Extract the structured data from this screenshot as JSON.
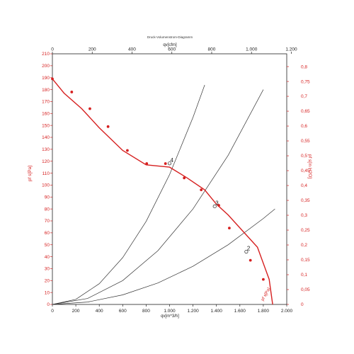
{
  "chart_data": {
    "type": "line",
    "title": "Druck-Volumenstrom-Diagramm",
    "axes": {
      "x_bottom": {
        "label": "qv[m^3/h]",
        "min": 0,
        "max": 2000,
        "ticks": [
          0,
          200,
          400,
          600,
          800,
          1000,
          1200,
          1400,
          1600,
          1800,
          2000
        ],
        "tick_labels": [
          "0",
          "200",
          "400",
          "600",
          "800",
          "1.000",
          "1.200",
          "1.400",
          "1.600",
          "1.800",
          "2.000"
        ]
      },
      "x_top": {
        "label": "qv[cfm]",
        "min": 0,
        "max": 1177,
        "ticks": [
          0,
          200,
          400,
          600,
          800,
          1000,
          1200
        ],
        "tick_labels": [
          "0",
          "200",
          "400",
          "600",
          "800",
          "1.000",
          "1.200"
        ]
      },
      "y_left": {
        "label": "pf s[Pa]",
        "min": 0,
        "max": 210,
        "ticks": [
          0,
          10,
          20,
          30,
          40,
          50,
          60,
          70,
          80,
          90,
          100,
          110,
          120,
          130,
          140,
          150,
          160,
          170,
          180,
          190,
          200,
          210
        ]
      },
      "y_right": {
        "label": "pf s[in H2O]",
        "min": 0,
        "max": 0.843,
        "ticks": [
          0,
          0.05,
          0.1,
          0.15,
          0.2,
          0.25,
          0.3,
          0.35,
          0.4,
          0.45,
          0.5,
          0.55,
          0.6,
          0.65,
          0.7,
          0.75,
          0.8
        ],
        "tick_labels": [
          "0",
          "0,05",
          "0,1",
          "0,15",
          "0,2",
          "0,25",
          "0,3",
          "0,35",
          "0,4",
          "0,45",
          "0,5",
          "0,55",
          "0,6",
          "0,65",
          "0,7",
          "0,75",
          "0,8"
        ]
      }
    },
    "series": [
      {
        "name": "pf s",
        "color": "#d62020",
        "x": [
          0,
          100,
          250,
          400,
          600,
          800,
          1000,
          1150,
          1300,
          1400,
          1500,
          1620,
          1750,
          1850,
          1880
        ],
        "y": [
          189,
          177,
          164,
          148,
          129,
          117,
          115,
          106,
          96,
          84,
          75,
          62,
          48,
          21,
          0
        ],
        "marker_x": [
          0,
          165,
          320,
          475,
          640,
          805,
          965,
          1125,
          1270,
          1420,
          1510,
          1690,
          1800
        ],
        "marker_y": [
          189,
          178,
          164,
          149,
          129,
          118,
          118,
          106,
          96,
          83,
          64,
          37,
          21
        ]
      }
    ],
    "system_curves": [
      {
        "x": [
          0,
          200,
          400,
          600,
          800,
          1000,
          1200,
          1300
        ],
        "y": [
          0,
          4.3,
          17.4,
          39.2,
          69.6,
          108.8,
          156.7,
          183.9
        ]
      },
      {
        "x": [
          0,
          300,
          600,
          900,
          1200,
          1500,
          1800
        ],
        "y": [
          0,
          5,
          20,
          45,
          80,
          125,
          180
        ]
      },
      {
        "x": [
          0,
          300,
          600,
          900,
          1200,
          1500,
          1800,
          1900
        ],
        "y": [
          0,
          2,
          8,
          18,
          32,
          50,
          72,
          80
        ]
      }
    ],
    "annotations": [
      {
        "text": "4",
        "x": 1000,
        "y": 117
      },
      {
        "text": "3",
        "x": 1385,
        "y": 81
      },
      {
        "text": "2",
        "x": 1655,
        "y": 43
      },
      {
        "text": "pf s[Pa]",
        "x": 1830,
        "y": 8,
        "color": "#d62020"
      }
    ],
    "grid": false,
    "legend": "none"
  }
}
